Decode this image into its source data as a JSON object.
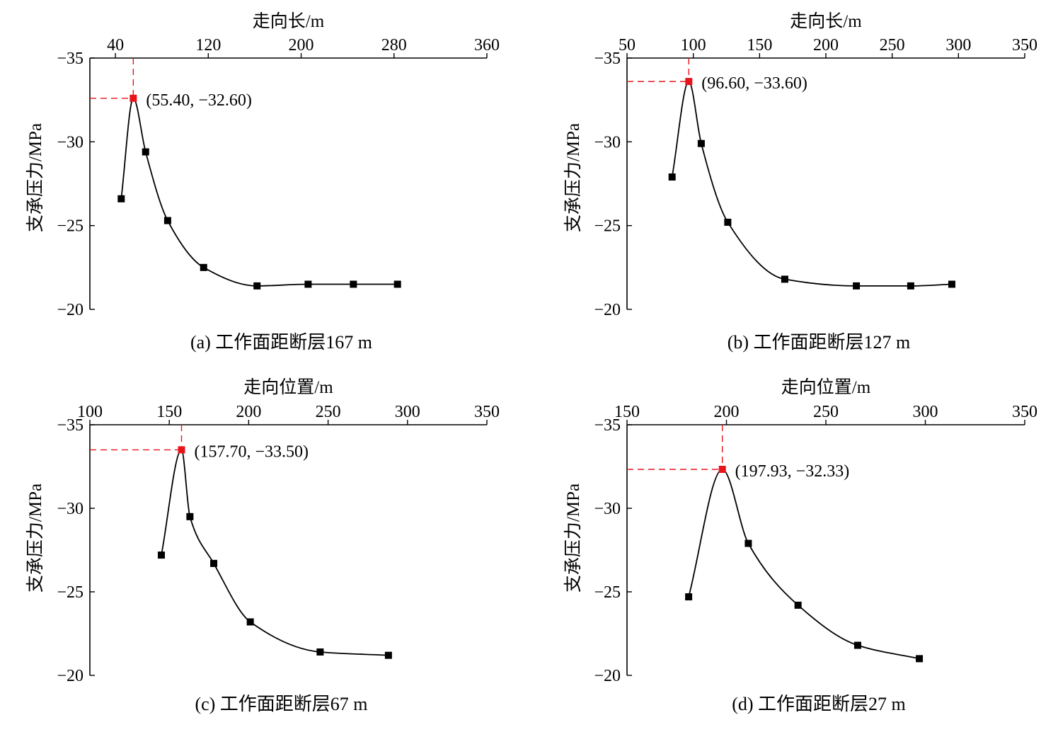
{
  "colors": {
    "line": "#000000",
    "marker": "#000000",
    "peak": "#e8141c",
    "guide": "#e8141c"
  },
  "chart_data": [
    {
      "type": "line",
      "caption": "(a)  工作面距断层167 m",
      "xlabel": "走向长/m",
      "ylabel": "支承压力/MPa",
      "xlim": [
        18,
        360
      ],
      "xticks": [
        40,
        120,
        200,
        280,
        360
      ],
      "ylim": [
        -20,
        -35
      ],
      "yticks": [
        -35,
        -30,
        -25,
        -20
      ],
      "x": [
        45,
        55.4,
        66,
        85,
        116,
        162,
        206,
        245,
        283
      ],
      "y": [
        -26.6,
        -32.6,
        -29.4,
        -25.3,
        -22.5,
        -21.4,
        -21.5,
        -21.5,
        -21.5
      ],
      "peak": {
        "x": 55.4,
        "y": -32.6,
        "label": "(55.40, −32.60)"
      }
    },
    {
      "type": "line",
      "caption": "(b)  工作面距断层127 m",
      "xlabel": "走向长/m",
      "ylabel": "支承压力/MPa",
      "xlim": [
        50,
        350
      ],
      "xticks": [
        50,
        100,
        150,
        200,
        250,
        300,
        350
      ],
      "ylim": [
        -20,
        -35
      ],
      "yticks": [
        -35,
        -30,
        -25,
        -20
      ],
      "x": [
        84,
        96.6,
        106,
        126,
        169,
        223,
        264,
        295
      ],
      "y": [
        -27.9,
        -33.6,
        -29.9,
        -25.2,
        -21.8,
        -21.4,
        -21.4,
        -21.5
      ],
      "peak": {
        "x": 96.6,
        "y": -33.6,
        "label": "(96.60, −33.60)"
      }
    },
    {
      "type": "line",
      "caption": "(c)  工作面距断层67 m",
      "xlabel": "走向位置/m",
      "ylabel": "支承压力/MPa",
      "xlim": [
        100,
        350
      ],
      "xticks": [
        100,
        150,
        200,
        250,
        300,
        350
      ],
      "ylim": [
        -20,
        -35
      ],
      "yticks": [
        -35,
        -30,
        -25,
        -20
      ],
      "x": [
        145,
        157.7,
        163,
        178,
        201,
        245,
        288
      ],
      "y": [
        -27.2,
        -33.5,
        -29.5,
        -26.7,
        -23.2,
        -21.4,
        -21.2
      ],
      "peak": {
        "x": 157.7,
        "y": -33.5,
        "label": "(157.70, −33.50)"
      }
    },
    {
      "type": "line",
      "caption": "(d)  工作面距断层27 m",
      "xlabel": "走向位置/m",
      "ylabel": "支承压力/MPa",
      "xlim": [
        150,
        350
      ],
      "xticks": [
        150,
        200,
        250,
        300,
        350
      ],
      "ylim": [
        -20,
        -35
      ],
      "yticks": [
        -35,
        -30,
        -25,
        -20
      ],
      "x": [
        181,
        197.93,
        211,
        236,
        266,
        297
      ],
      "y": [
        -24.7,
        -32.33,
        -27.9,
        -24.2,
        -21.8,
        -21.0
      ],
      "peak": {
        "x": 197.93,
        "y": -32.33,
        "label": "(197.93, −32.33)"
      }
    }
  ]
}
